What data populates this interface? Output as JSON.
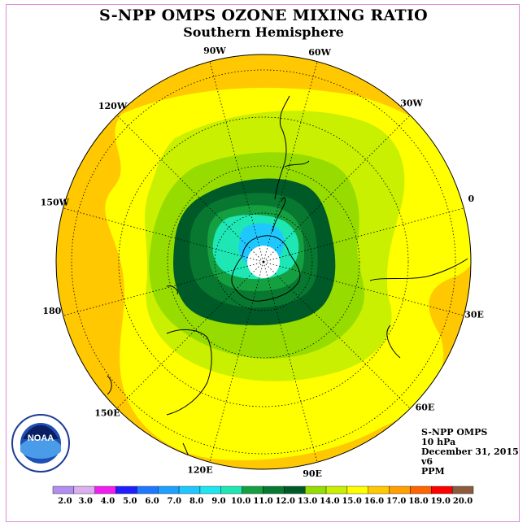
{
  "title": "S-NPP OMPS OZONE MIXING RATIO",
  "subtitle": "Southern Hemisphere",
  "longitude_labels": [
    "90W",
    "60W",
    "30W",
    "0",
    "30E",
    "60E",
    "90E",
    "120E",
    "150E",
    "180",
    "150W",
    "120W"
  ],
  "info": {
    "instrument": "S-NPP OMPS",
    "level": "10 hPa",
    "date": "December 31, 2015",
    "version": "v6",
    "units": "PPM"
  },
  "logo": {
    "text": "NOAA",
    "ring_text": "NATIONAL OCEANIC AND ATMOSPHERIC ADMINISTRATION U.S. DEPARTMENT OF COMMERCE"
  },
  "colorbar": {
    "labels": [
      "2.0",
      "3.0",
      "4.0",
      "5.0",
      "6.0",
      "7.0",
      "8.0",
      "9.0",
      "10.0",
      "11.0",
      "12.0",
      "13.0",
      "14.0",
      "15.0",
      "16.0",
      "17.0",
      "18.0",
      "19.0",
      "20.0"
    ],
    "colors": [
      "#b28ef0",
      "#dcb0f0",
      "#f01ef0",
      "#1e1eff",
      "#1e78ff",
      "#1ea0ff",
      "#1ec8ff",
      "#1ee6f0",
      "#1ee6b4",
      "#14a040",
      "#087830",
      "#005a28",
      "#96dc00",
      "#c8f000",
      "#ffff00",
      "#ffc800",
      "#ffa000",
      "#ff6400",
      "#ff0000",
      "#8c5a3c"
    ]
  },
  "map": {
    "projection": "south-polar-stereographic",
    "field": "ozone mixing ratio",
    "colors": {
      "outer": "#ffc800",
      "level15": "#ffff00",
      "level14": "#c8f000",
      "level13": "#96dc00",
      "level12": "#005a28",
      "level11": "#087830",
      "level10": "#14a040",
      "level9": "#1ee6b4",
      "level8": "#1ec8ff",
      "pole": "#ffffff"
    }
  }
}
